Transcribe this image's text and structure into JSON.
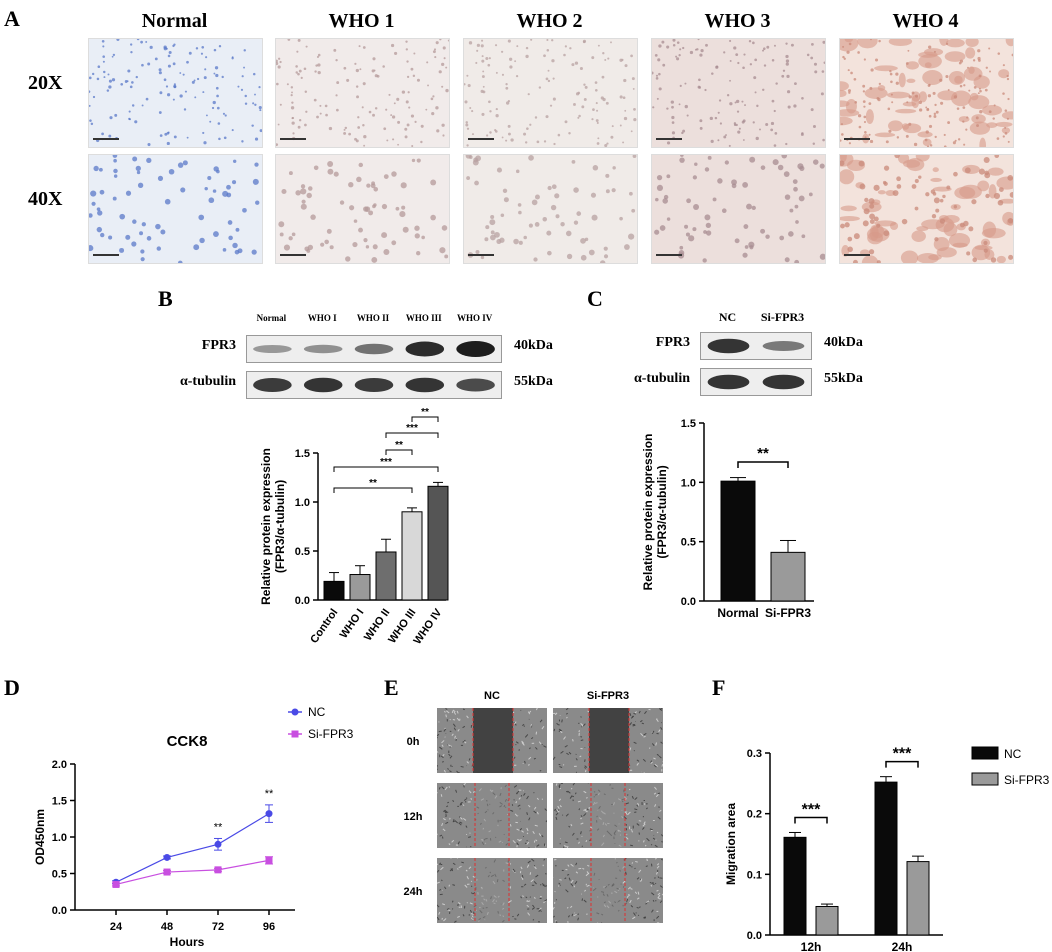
{
  "panel_labels": {
    "a": "A",
    "b": "B",
    "c": "C",
    "d": "D",
    "e": "E",
    "f": "F"
  },
  "histology": {
    "columns": [
      "Normal",
      "WHO 1",
      "WHO 2",
      "WHO 3",
      "WHO 4"
    ],
    "rows": [
      "20X",
      "40X"
    ]
  },
  "blot_b": {
    "lanes": [
      "Normal",
      "WHO I",
      "WHO II",
      "WHO III",
      "WHO IV"
    ],
    "proteins": [
      "FPR3",
      "α-tubulin"
    ],
    "sizes": [
      "40kDa",
      "55kDa"
    ]
  },
  "blot_c": {
    "lanes": [
      "NC",
      "Si-FPR3"
    ],
    "proteins": [
      "FPR3",
      "α-tubulin"
    ],
    "sizes": [
      "40kDa",
      "55kDa"
    ]
  },
  "chart_data": [
    {
      "id": "B-bar",
      "type": "bar",
      "categories": [
        "Control",
        "WHO I",
        "WHO II",
        "WHO III",
        "WHO IV"
      ],
      "values": [
        0.19,
        0.26,
        0.49,
        0.9,
        1.16
      ],
      "errors": [
        0.09,
        0.09,
        0.13,
        0.04,
        0.04
      ],
      "colors": [
        "#0a0a0a",
        "#9a9a9a",
        "#6e6e6e",
        "#d8d8d8",
        "#555555"
      ],
      "ylabel_lines": [
        "Relative protein expression",
        "(FPR3/α-tubulin)"
      ],
      "ylim": [
        0,
        1.5
      ],
      "yticks": [
        "0.0",
        "0.5",
        "1.0",
        "1.5"
      ],
      "significance": [
        {
          "from": 3,
          "to": 4,
          "label": "**"
        },
        {
          "from": 2,
          "to": 4,
          "label": "***"
        },
        {
          "from": 2,
          "to": 3,
          "label": "**"
        },
        {
          "from": 0,
          "to": 4,
          "label": "***"
        },
        {
          "from": 0,
          "to": 3,
          "label": "**"
        }
      ]
    },
    {
      "id": "C-bar",
      "type": "bar",
      "categories": [
        "Normal",
        "Si-FPR3"
      ],
      "values": [
        1.01,
        0.41
      ],
      "errors": [
        0.03,
        0.1
      ],
      "colors": [
        "#0a0a0a",
        "#9a9a9a"
      ],
      "ylabel_lines": [
        "Relative protein expression",
        "(FPR3/α-tubulin)"
      ],
      "ylim": [
        0,
        1.5
      ],
      "yticks": [
        "0.0",
        "0.5",
        "1.0",
        "1.5"
      ],
      "significance": [
        {
          "from": 0,
          "to": 1,
          "label": "**"
        }
      ]
    },
    {
      "id": "D-line",
      "type": "line",
      "title": "CCK8",
      "xlabel": "Hours",
      "ylabel": "OD450nm",
      "x": [
        24,
        48,
        72,
        96
      ],
      "xticks": [
        "24",
        "48",
        "72",
        "96"
      ],
      "ylim": [
        0,
        2.0
      ],
      "yticks": [
        "0.0",
        "0.5",
        "1.0",
        "1.5",
        "2.0"
      ],
      "series": [
        {
          "name": "NC",
          "values": [
            0.38,
            0.72,
            0.9,
            1.32
          ],
          "errors": [
            0.02,
            0.02,
            0.08,
            0.12
          ],
          "color": "#4a4ae6",
          "marker": "circle"
        },
        {
          "name": "Si-FPR3",
          "values": [
            0.35,
            0.52,
            0.55,
            0.68
          ],
          "errors": [
            0.02,
            0.02,
            0.02,
            0.05
          ],
          "color": "#c84fe0",
          "marker": "square"
        }
      ],
      "annotations": [
        {
          "x": 72,
          "label": "**"
        },
        {
          "x": 96,
          "label": "**"
        }
      ]
    },
    {
      "id": "F-bar",
      "type": "bar",
      "ylabel": "Migration area",
      "categories": [
        "12h",
        "24h"
      ],
      "series": [
        {
          "name": "NC",
          "values": [
            0.161,
            0.252
          ],
          "errors": [
            0.008,
            0.009
          ],
          "color": "#0a0a0a"
        },
        {
          "name": "Si-FPR3",
          "values": [
            0.047,
            0.121
          ],
          "errors": [
            0.004,
            0.009
          ],
          "color": "#9a9a9a"
        }
      ],
      "ylim": [
        0,
        0.3
      ],
      "yticks": [
        "0.0",
        "0.1",
        "0.2",
        "0.3"
      ],
      "significance": [
        {
          "group": 0,
          "label": "***"
        },
        {
          "group": 1,
          "label": "***"
        }
      ]
    }
  ],
  "migration_e": {
    "columns": [
      "NC",
      "Si-FPR3"
    ],
    "rows": [
      "0h",
      "12h",
      "24h"
    ]
  }
}
